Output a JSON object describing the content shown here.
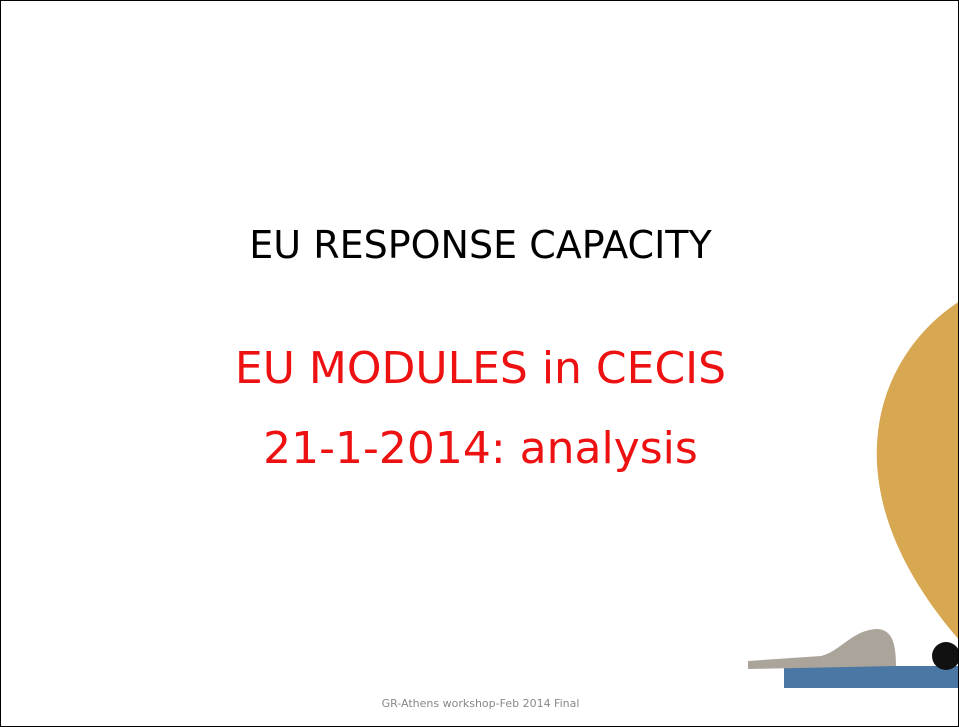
{
  "slide": {
    "title": "EU RESPONSE CAPACITY",
    "subtitle_lines": [
      "EU MODULES in CECIS",
      "21-1-2014: analysis"
    ],
    "footer": "GR-Athens workshop-Feb 2014 Final"
  }
}
